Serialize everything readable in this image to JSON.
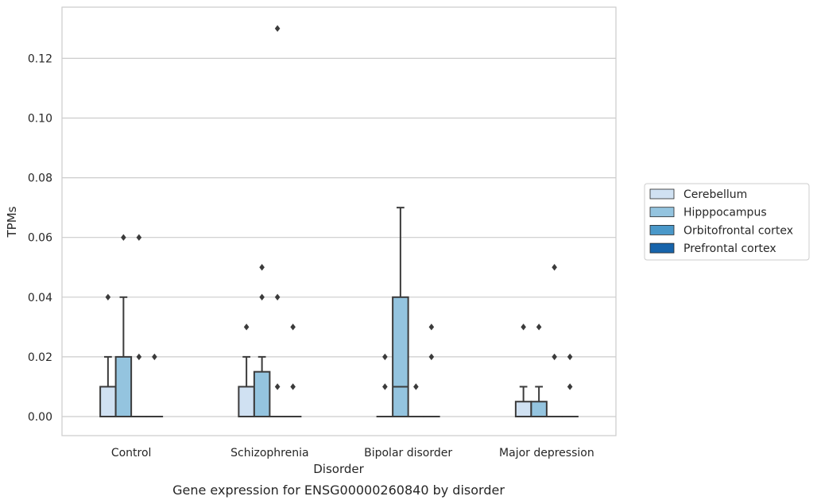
{
  "chart_data": {
    "type": "box",
    "xlabel": "Disorder",
    "ylabel": "TPMs",
    "caption": "Gene expression for ENSG00000260840 by disorder",
    "ylim": [
      -0.0065,
      0.137
    ],
    "yticks": [
      "0.00",
      "0.02",
      "0.04",
      "0.06",
      "0.08",
      "0.10",
      "0.12"
    ],
    "categories": [
      "Control",
      "Schizophrenia",
      "Bipolar disorder",
      "Major depression"
    ],
    "grid": "horizontal",
    "legend_position": "right",
    "series": [
      {
        "name": "Cerebellum",
        "color": "#d0e1f2",
        "boxes": [
          {
            "q1": 0,
            "median": 0,
            "q3": 0.01,
            "whislo": 0,
            "whishi": 0.02,
            "fliers": [
              0.04
            ]
          },
          {
            "q1": 0,
            "median": 0,
            "q3": 0.01,
            "whislo": 0,
            "whishi": 0.02,
            "fliers": [
              0.03
            ]
          },
          {
            "q1": 0,
            "median": 0,
            "q3": 0,
            "whislo": 0,
            "whishi": 0,
            "fliers": [
              0.01,
              0.02
            ]
          },
          {
            "q1": 0,
            "median": 0,
            "q3": 0.005,
            "whislo": 0,
            "whishi": 0.01,
            "fliers": [
              0.03
            ]
          }
        ]
      },
      {
        "name": "Hipppocampus",
        "color": "#94c4df",
        "boxes": [
          {
            "q1": 0,
            "median": 0,
            "q3": 0.02,
            "whislo": 0,
            "whishi": 0.04,
            "fliers": [
              0.06
            ]
          },
          {
            "q1": 0,
            "median": 0,
            "q3": 0.015,
            "whislo": 0,
            "whishi": 0.02,
            "fliers": [
              0.04,
              0.05
            ]
          },
          {
            "q1": 0,
            "median": 0.01,
            "q3": 0.04,
            "whislo": 0,
            "whishi": 0.07,
            "fliers": []
          },
          {
            "q1": 0,
            "median": 0,
            "q3": 0.005,
            "whislo": 0,
            "whishi": 0.01,
            "fliers": [
              0.03
            ]
          }
        ]
      },
      {
        "name": "Orbitofrontal cortex",
        "color": "#4a98c9",
        "boxes": [
          {
            "q1": 0,
            "median": 0,
            "q3": 0,
            "whislo": 0,
            "whishi": 0,
            "fliers": [
              0.02,
              0.06
            ]
          },
          {
            "q1": 0,
            "median": 0,
            "q3": 0,
            "whislo": 0,
            "whishi": 0,
            "fliers": [
              0.01,
              0.04,
              0.13
            ]
          },
          {
            "q1": 0,
            "median": 0,
            "q3": 0,
            "whislo": 0,
            "whishi": 0,
            "fliers": [
              0.01
            ]
          },
          {
            "q1": 0,
            "median": 0,
            "q3": 0,
            "whislo": 0,
            "whishi": 0,
            "fliers": [
              0.02,
              0.05
            ]
          }
        ]
      },
      {
        "name": "Prefrontal cortex",
        "color": "#1764ab",
        "boxes": [
          {
            "q1": 0,
            "median": 0,
            "q3": 0,
            "whislo": 0,
            "whishi": 0,
            "fliers": [
              0.02
            ]
          },
          {
            "q1": 0,
            "median": 0,
            "q3": 0,
            "whislo": 0,
            "whishi": 0,
            "fliers": [
              0.01,
              0.03
            ]
          },
          {
            "q1": 0,
            "median": 0,
            "q3": 0,
            "whislo": 0,
            "whishi": 0,
            "fliers": [
              0.02,
              0.03
            ]
          },
          {
            "q1": 0,
            "median": 0,
            "q3": 0,
            "whislo": 0,
            "whishi": 0,
            "fliers": [
              0.01,
              0.02
            ]
          }
        ]
      }
    ]
  }
}
